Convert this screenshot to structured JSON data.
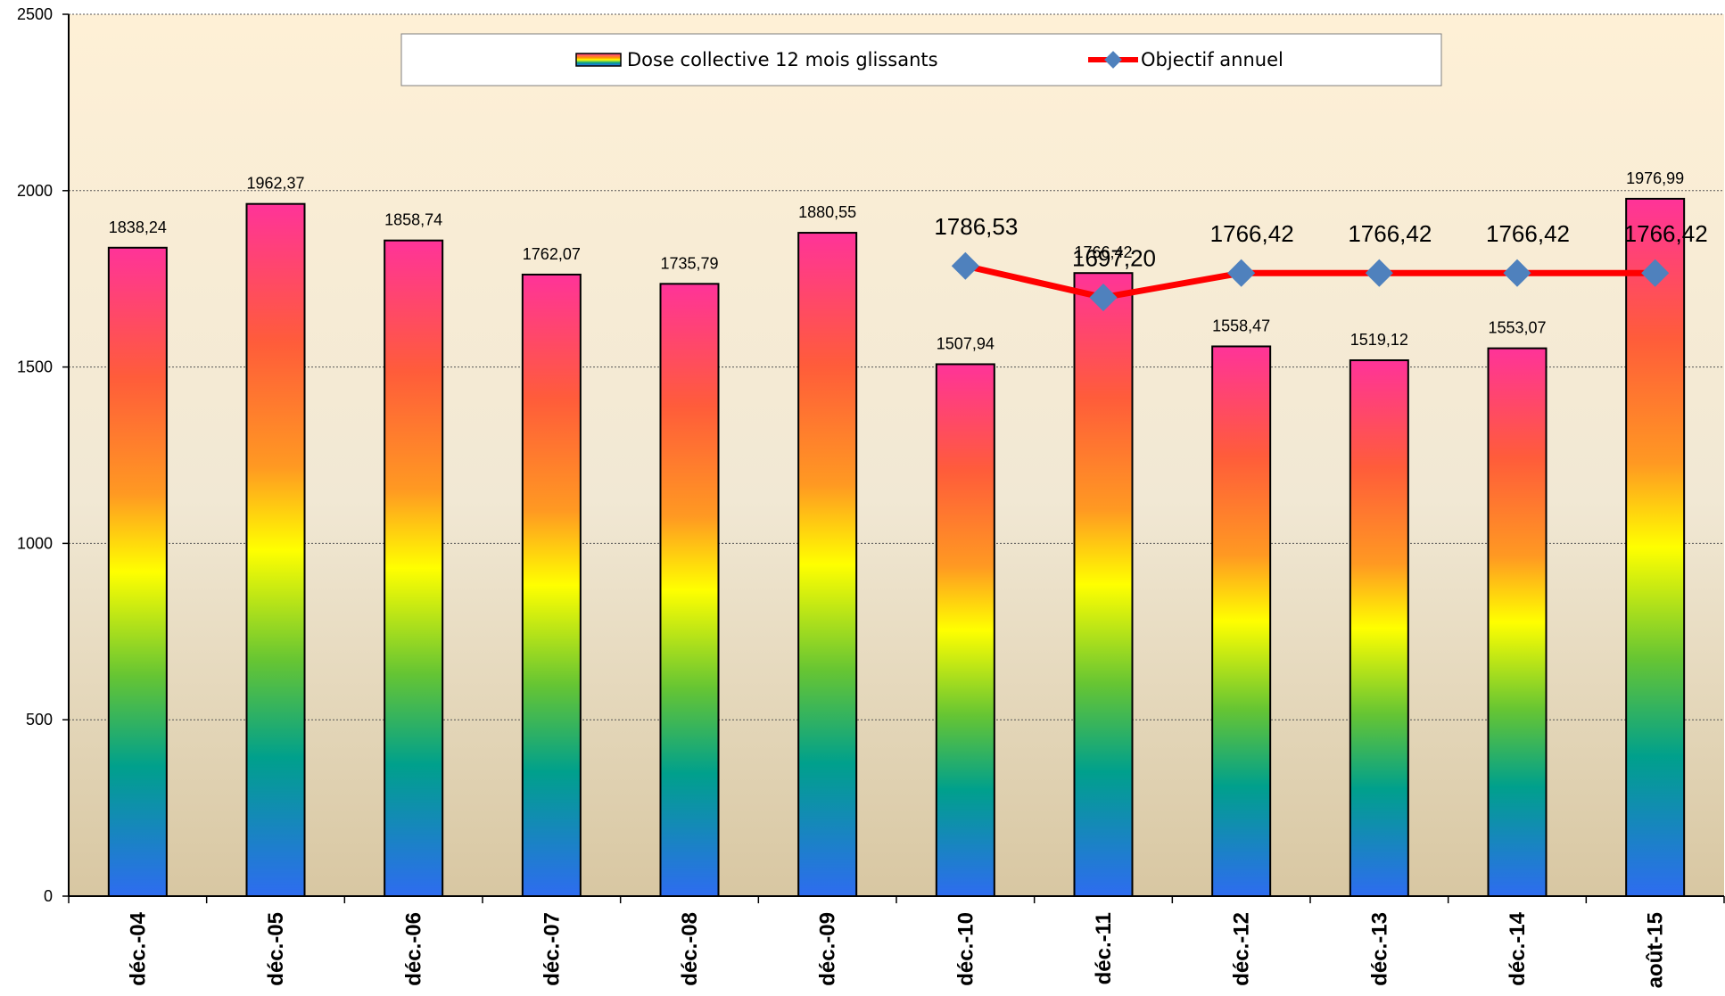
{
  "chart_data": {
    "type": "bar",
    "title": "",
    "xlabel": "",
    "ylabel": "",
    "ylim": [
      0,
      2500
    ],
    "yticks": [
      0,
      500,
      1000,
      1500,
      2000,
      2500
    ],
    "grid": true,
    "legend_position": "top",
    "categories": [
      "déc.-04",
      "déc.-05",
      "déc.-06",
      "déc.-07",
      "déc.-08",
      "déc.-09",
      "déc.-10",
      "déc.-11",
      "déc.-12",
      "déc.-13",
      "déc.-14",
      "août-15"
    ],
    "series": [
      {
        "name": "Dose collective 12 mois glissants",
        "type": "bar",
        "values": [
          1838.24,
          1962.37,
          1858.74,
          1762.07,
          1735.79,
          1880.55,
          1507.94,
          1766.42,
          1558.47,
          1519.12,
          1553.07,
          1976.99
        ],
        "labels": [
          "1838,24",
          "1962,37",
          "1858,74",
          "1762,07",
          "1735,79",
          "1880,55",
          "1507,94",
          "1766,42",
          "1558,47",
          "1519,12",
          "1553,07",
          "1976,99"
        ]
      },
      {
        "name": "Objectif annuel",
        "type": "line",
        "values": [
          null,
          null,
          null,
          null,
          null,
          null,
          1786.53,
          1697.2,
          1766.42,
          1766.42,
          1766.42,
          1766.42
        ],
        "labels": [
          "",
          "",
          "",
          "",
          "",
          "",
          "1786,53",
          "1697,20",
          "1766,42",
          "1766,42",
          "1766,42",
          "1766,42"
        ]
      }
    ],
    "colors": {
      "line": "#ff0000",
      "marker": "#4f81bd",
      "gradient": [
        "#ff3399",
        "#ff6633",
        "#ff9900",
        "#ffff00",
        "#66cc33",
        "#009999",
        "#3366ff"
      ],
      "plot_bg_top": "#fef0d6",
      "plot_bg_bottom": "#d9c8a3"
    }
  }
}
